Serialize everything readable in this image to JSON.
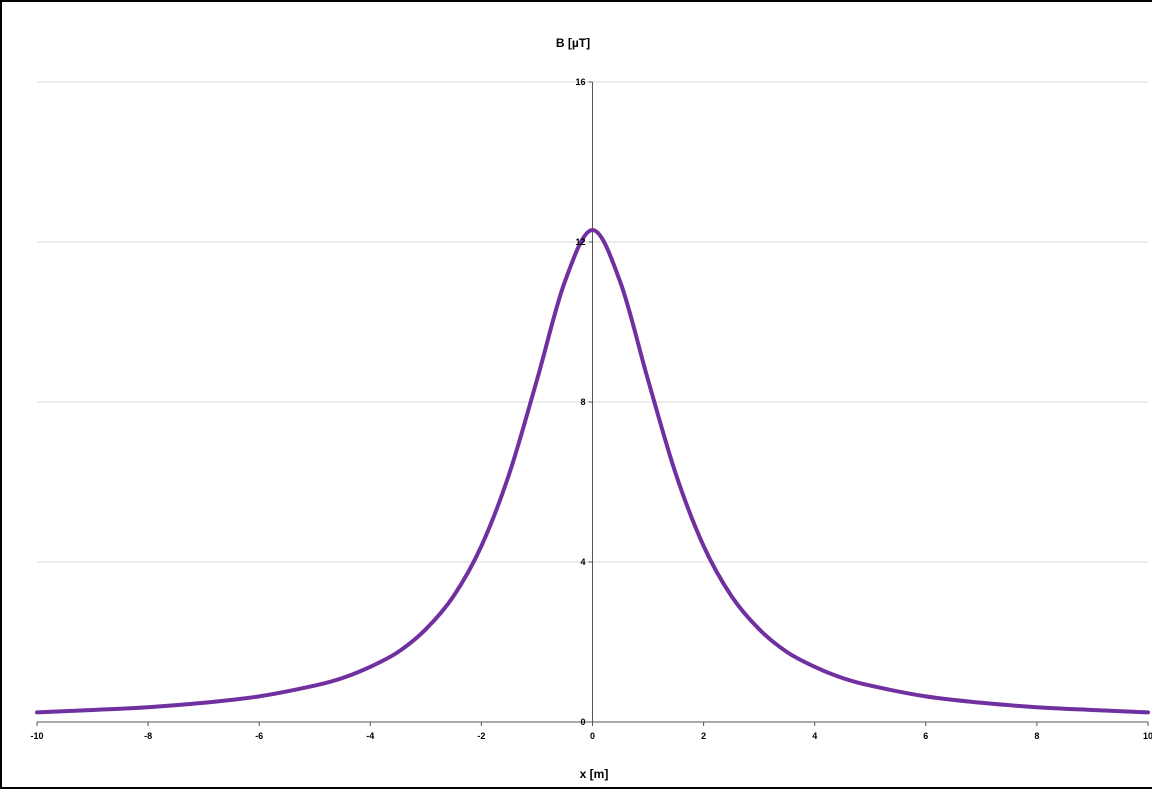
{
  "chart_data": {
    "type": "line",
    "title": "",
    "xlabel": "x [m]",
    "ylabel": "B [µT]",
    "xlim": [
      -10,
      10
    ],
    "ylim": [
      0,
      16
    ],
    "x_ticks": [
      -10,
      -8,
      -6,
      -4,
      -2,
      0,
      2,
      4,
      6,
      8,
      10
    ],
    "y_ticks": [
      0,
      4,
      8,
      12,
      16
    ],
    "grid": {
      "horizontal": true,
      "vertical": false
    },
    "legend": "none",
    "series": [
      {
        "color": "#7030a0",
        "x": [
          -10,
          -9,
          -8,
          -7,
          -6,
          -5,
          -4.5,
          -4,
          -3.5,
          -3,
          -2.5,
          -2,
          -1.5,
          -1,
          -0.5,
          0,
          0.5,
          1,
          1.5,
          2,
          2.5,
          3,
          3.5,
          4,
          4.5,
          5,
          6,
          7,
          8,
          9,
          10
        ],
        "y": [
          0.24,
          0.3,
          0.37,
          0.48,
          0.64,
          0.91,
          1.1,
          1.38,
          1.75,
          2.32,
          3.15,
          4.4,
          6.2,
          8.55,
          11.0,
          12.3,
          11.0,
          8.55,
          6.2,
          4.4,
          3.15,
          2.32,
          1.75,
          1.38,
          1.1,
          0.91,
          0.64,
          0.48,
          0.37,
          0.3,
          0.24
        ]
      }
    ]
  }
}
